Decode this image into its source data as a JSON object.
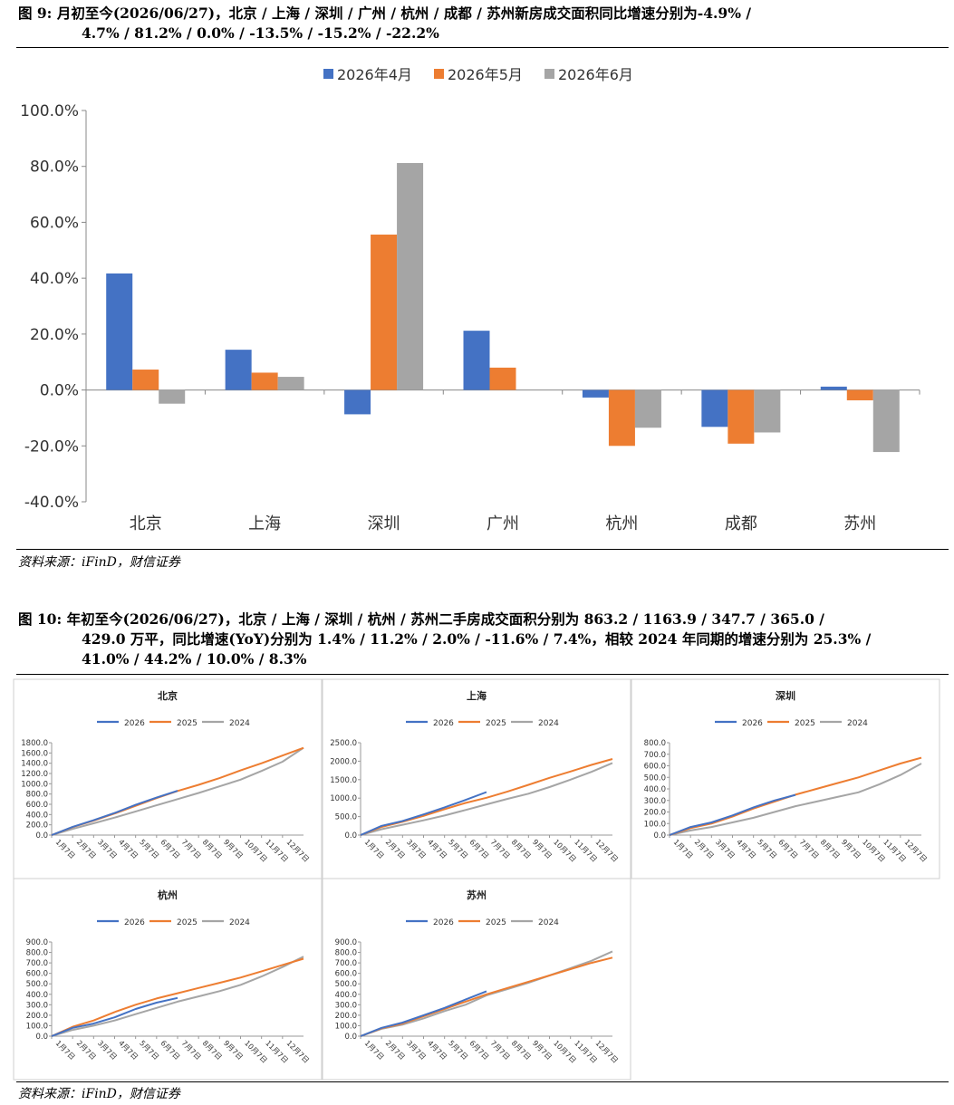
{
  "figure9": {
    "caption_prefix": "图 9:",
    "caption_line1": "月初至今(2026/06/27)，北京 / 上海 / 深圳 / 广州 / 杭州 / 成都 / 苏州新房成交面积同比增速分别为-4.9% /",
    "caption_line2": "4.7% / 81.2% / 0.0% / -13.5% / -15.2% / -22.2%",
    "source": "资料来源：iFinD，财信证券"
  },
  "figure10": {
    "caption_prefix": "图 10:",
    "caption_line1": "年初至今(2026/06/27)，北京 / 上海 / 深圳 / 杭州 / 苏州二手房成交面积分别为 863.2 / 1163.9 / 347.7 / 365.0 /",
    "caption_line2": "429.0 万平，同比增速(YoY)分别为 1.4% / 11.2% / 2.0% / -11.6% / 7.4%，相较 2024 年同期的增速分别为 25.3% /",
    "caption_line3": "41.0% / 44.2% / 10.0% / 8.3%",
    "source": "资料来源：iFinD，财信证券"
  },
  "colors": {
    "s2026": "#4472C4",
    "s2025": "#ED7D31",
    "s2024": "#A5A5A5"
  },
  "chart_data": [
    {
      "type": "bar",
      "categories": [
        "北京",
        "上海",
        "深圳",
        "广州",
        "杭州",
        "成都",
        "苏州"
      ],
      "series": [
        {
          "name": "2026年4月",
          "values": [
            41.7,
            14.4,
            -8.7,
            21.2,
            -2.7,
            -13.2,
            1.2
          ]
        },
        {
          "name": "2026年5月",
          "values": [
            7.3,
            6.2,
            55.6,
            8.0,
            -20.0,
            -19.2,
            -3.7
          ]
        },
        {
          "name": "2026年6月",
          "values": [
            -4.9,
            4.7,
            81.2,
            0.0,
            -13.5,
            -15.2,
            -22.2
          ]
        }
      ],
      "ylim": [
        -40,
        100
      ],
      "yticks": [
        "-40.0%",
        "-20.0%",
        "0.0%",
        "20.0%",
        "40.0%",
        "60.0%",
        "80.0%",
        "100.0%"
      ],
      "legend": "top"
    },
    {
      "type": "line",
      "title": "北京",
      "x_ticks": [
        "1月7日",
        "2月7日",
        "3月7日",
        "4月7日",
        "5月7日",
        "6月7日",
        "7月7日",
        "8月7日",
        "9月7日",
        "10月7日",
        "11月7日",
        "12月7日"
      ],
      "y_ticks": [
        "0.0",
        "200.0",
        "400.0",
        "600.0",
        "800.0",
        "1000.0",
        "1200.0",
        "1400.0",
        "1600.0",
        "1800.0"
      ],
      "ylim": [
        0,
        1800
      ],
      "legend": "top",
      "series": [
        {
          "name": "2026",
          "values": [
            0,
            160,
            290,
            430,
            590,
            730,
            863
          ]
        },
        {
          "name": "2025",
          "values": [
            0,
            155,
            280,
            420,
            570,
            720,
            860,
            980,
            1110,
            1260,
            1400,
            1550,
            1700
          ]
        },
        {
          "name": "2024",
          "values": [
            0,
            120,
            230,
            340,
            460,
            580,
            700,
            820,
            950,
            1080,
            1250,
            1430,
            1700
          ]
        }
      ]
    },
    {
      "type": "line",
      "title": "上海",
      "x_ticks": [
        "1月7日",
        "2月7日",
        "3月7日",
        "4月7日",
        "5月7日",
        "6月7日",
        "7月7日",
        "8月7日",
        "9月7日",
        "10月7日",
        "11月7日",
        "12月7日"
      ],
      "y_ticks": [
        "0.0",
        "500.0",
        "1000.0",
        "1500.0",
        "2000.0",
        "2500.0"
      ],
      "ylim": [
        0,
        2500
      ],
      "legend": "top",
      "series": [
        {
          "name": "2026",
          "values": [
            0,
            250,
            380,
            560,
            750,
            950,
            1164
          ]
        },
        {
          "name": "2025",
          "values": [
            0,
            220,
            360,
            520,
            700,
            870,
            1010,
            1180,
            1360,
            1550,
            1720,
            1900,
            2060
          ]
        },
        {
          "name": "2024",
          "values": [
            0,
            160,
            280,
            400,
            530,
            680,
            830,
            980,
            1120,
            1300,
            1500,
            1710,
            1950
          ]
        }
      ]
    },
    {
      "type": "line",
      "title": "深圳",
      "x_ticks": [
        "1月7日",
        "2月7日",
        "3月7日",
        "4月7日",
        "5月7日",
        "6月7日",
        "7月7日",
        "8月7日",
        "9月7日",
        "10月7日",
        "11月7日",
        "12月7日"
      ],
      "y_ticks": [
        "0.0",
        "100.0",
        "200.0",
        "300.0",
        "400.0",
        "500.0",
        "600.0",
        "700.0",
        "800.0"
      ],
      "ylim": [
        0,
        800
      ],
      "legend": "top",
      "series": [
        {
          "name": "2026",
          "values": [
            0,
            70,
            110,
            170,
            240,
            300,
            348
          ]
        },
        {
          "name": "2025",
          "values": [
            0,
            60,
            100,
            160,
            230,
            290,
            350,
            400,
            450,
            500,
            560,
            620,
            670
          ]
        },
        {
          "name": "2024",
          "values": [
            0,
            40,
            70,
            110,
            150,
            200,
            250,
            290,
            330,
            370,
            440,
            520,
            620
          ]
        }
      ]
    },
    {
      "type": "line",
      "title": "杭州",
      "x_ticks": [
        "1月7日",
        "2月7日",
        "3月7日",
        "4月7日",
        "5月7日",
        "6月7日",
        "7月7日",
        "8月7日",
        "9月7日",
        "10月7日",
        "11月7日",
        "12月7日"
      ],
      "y_ticks": [
        "0.0",
        "100.0",
        "200.0",
        "300.0",
        "400.0",
        "500.0",
        "600.0",
        "700.0",
        "800.0",
        "900.0"
      ],
      "ylim": [
        0,
        900
      ],
      "legend": "top",
      "series": [
        {
          "name": "2026",
          "values": [
            0,
            80,
            120,
            180,
            260,
            320,
            365
          ]
        },
        {
          "name": "2025",
          "values": [
            0,
            90,
            150,
            230,
            300,
            360,
            410,
            460,
            510,
            560,
            620,
            680,
            740
          ]
        },
        {
          "name": "2024",
          "values": [
            0,
            60,
            100,
            150,
            210,
            270,
            330,
            380,
            430,
            490,
            570,
            660,
            760
          ]
        }
      ]
    },
    {
      "type": "line",
      "title": "苏州",
      "x_ticks": [
        "1月7日",
        "2月7日",
        "3月7日",
        "4月7日",
        "5月7日",
        "6月7日",
        "7月7日",
        "8月7日",
        "9月7日",
        "10月7日",
        "11月7日",
        "12月7日"
      ],
      "y_ticks": [
        "0.0",
        "100.0",
        "200.0",
        "300.0",
        "400.0",
        "500.0",
        "600.0",
        "700.0",
        "800.0",
        "900.0"
      ],
      "ylim": [
        0,
        900
      ],
      "legend": "top",
      "series": [
        {
          "name": "2026",
          "values": [
            0,
            80,
            130,
            200,
            270,
            350,
            429
          ]
        },
        {
          "name": "2025",
          "values": [
            0,
            75,
            120,
            190,
            260,
            330,
            400,
            460,
            520,
            580,
            640,
            700,
            750
          ]
        },
        {
          "name": "2024",
          "values": [
            0,
            70,
            110,
            170,
            240,
            300,
            390,
            450,
            510,
            580,
            650,
            720,
            810
          ]
        }
      ]
    }
  ]
}
